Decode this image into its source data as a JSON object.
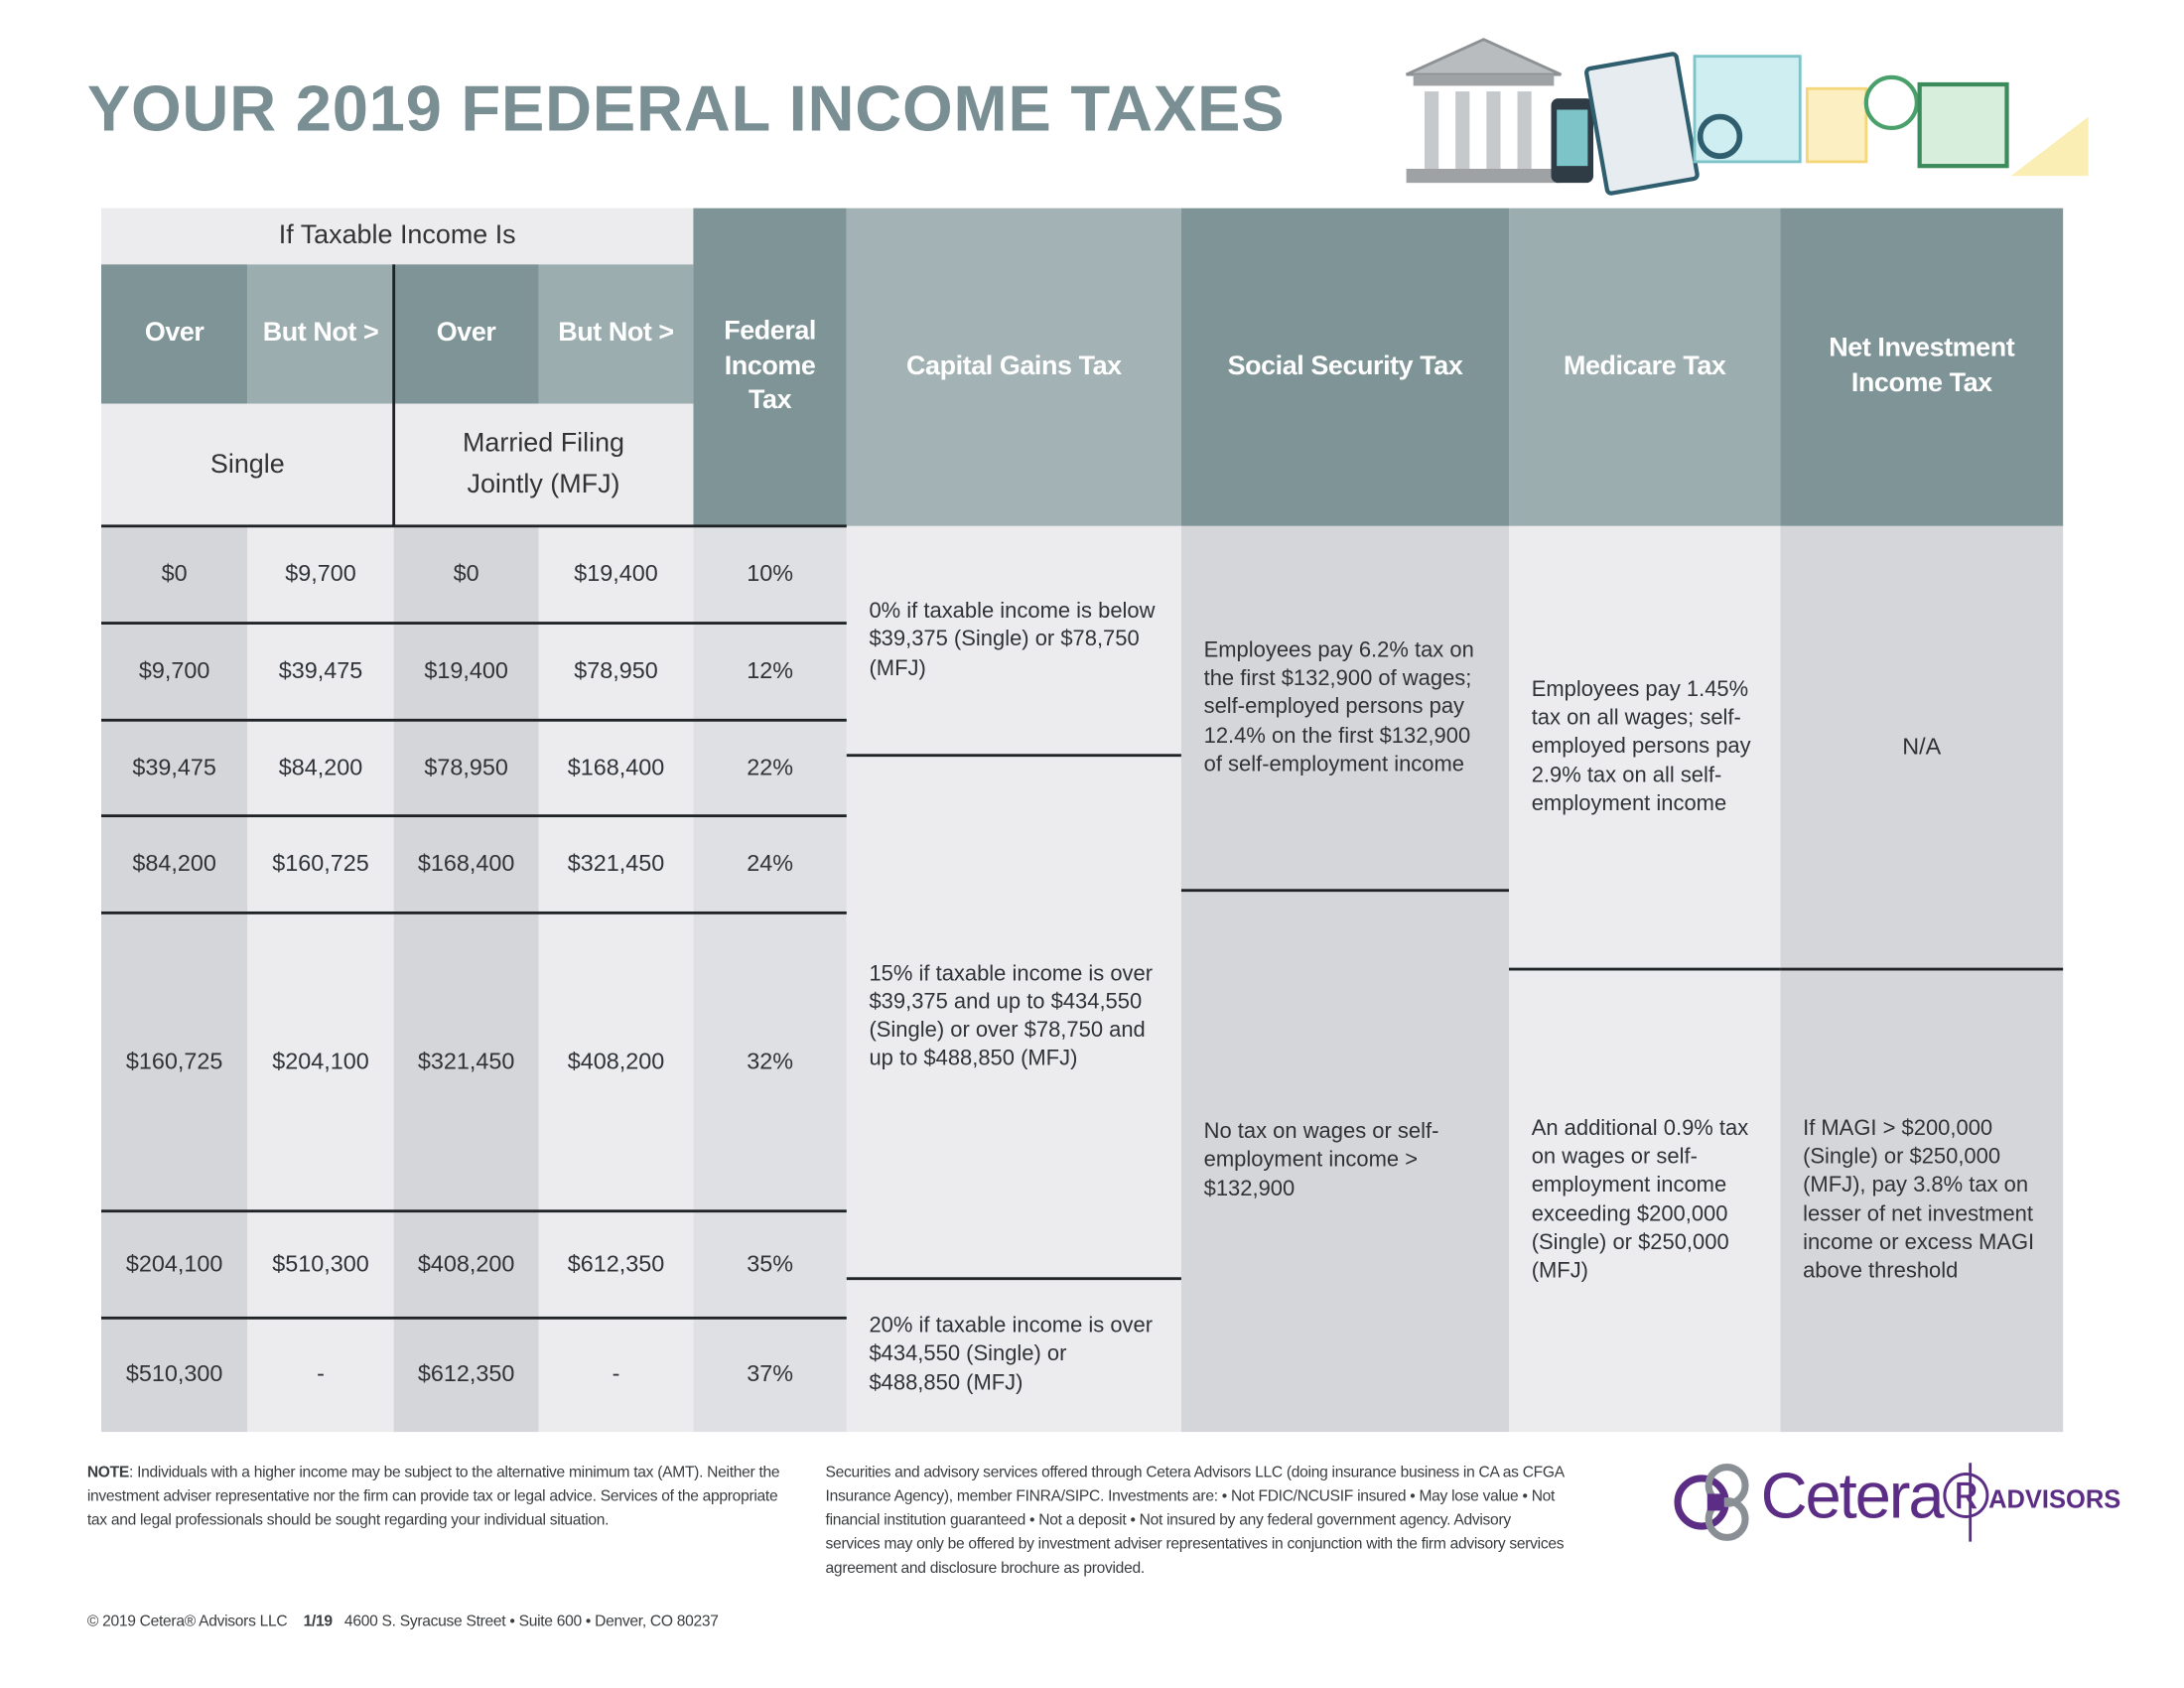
{
  "header": {
    "title": "YOUR 2019 FEDERAL INCOME TAXES"
  },
  "table": {
    "group_header": "If Taxable Income Is",
    "column_headers": [
      "Over",
      "But Not >",
      "Over",
      "But Not >",
      "Federal Income Tax",
      "Capital Gains Tax",
      "Social Security Tax",
      "Medicare Tax",
      "Net Investment Income Tax"
    ],
    "filing_status": [
      "Single",
      "Married Filing Jointly (MFJ)"
    ],
    "rows": [
      [
        "$0",
        "$9,700",
        "$0",
        "$19,400",
        "10%"
      ],
      [
        "$9,700",
        "$39,475",
        "$19,400",
        "$78,950",
        "12%"
      ],
      [
        "$39,475",
        "$84,200",
        "$78,950",
        "$168,400",
        "22%"
      ],
      [
        "$84,200",
        "$160,725",
        "$168,400",
        "$321,450",
        "24%"
      ],
      [
        "$160,725",
        "$204,100",
        "$321,450",
        "$408,200",
        "32%"
      ],
      [
        "$204,100",
        "$510,300",
        "$408,200",
        "$612,350",
        "35%"
      ],
      [
        "$510,300",
        "-",
        "$612,350",
        "-",
        "37%"
      ]
    ],
    "capital_gains": [
      "0% if taxable income is below $39,375 (Single) or $78,750 (MFJ)",
      "15% if taxable income is over $39,375 and up to $434,550 (Single) or over $78,750 and up to $488,850 (MFJ)",
      "20% if taxable income is over $434,550 (Single) or $488,850 (MFJ)"
    ],
    "social_security": [
      "Employees pay 6.2% tax on the first $132,900 of wages; self-employed persons pay 12.4% on the first $132,900 of self-employment income",
      "No tax on wages or self-employment income > $132,900"
    ],
    "medicare": [
      "Employees pay 1.45% tax on all wages; self-employed persons pay 2.9% tax on all self-employment income",
      "An additional 0.9% tax on wages or self-employment income exceeding $200,000 (Single) or $250,000 (MFJ)"
    ],
    "net_investment": [
      "N/A",
      "If MAGI > $200,000 (Single) or $250,000 (MFJ), pay 3.8% tax on lesser of net investment income or excess MAGI above threshold"
    ]
  },
  "footer": {
    "note_label": "NOTE",
    "note": ": Individuals with a higher income may be subject to the alternative minimum tax (AMT). Neither the investment adviser representative nor the firm can provide tax or legal advice. Services of the appropriate tax and legal professionals should be sought regarding your individual situation.",
    "disclosure": "Securities and advisory services offered through Cetera Advisors LLC (doing insurance business in CA as CFGA Insurance Agency), member FINRA/SIPC. Investments are: • Not FDIC/NCUSIF insured • May lose value • Not financial institution guaranteed • Not a deposit • Not insured by any federal government agency. Advisory services may only be offered by investment adviser representatives in conjunction with the firm advisory services agreement and disclosure brochure as provided.",
    "copyright": "© 2019 Cetera® Advisors LLC",
    "date": "1/19",
    "address": "4600 S. Syracuse Street • Suite 600 • Denver, CO 80237"
  },
  "logo": {
    "brand": "Cetera®",
    "division": "ADVISORS"
  }
}
